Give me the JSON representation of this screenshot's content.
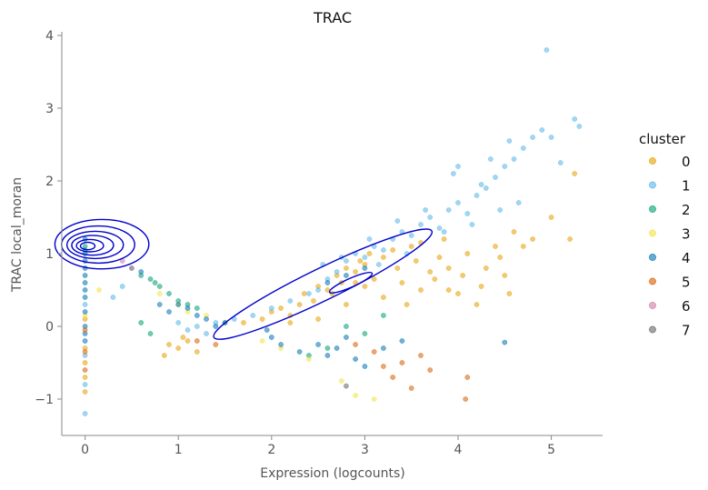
{
  "chart_data": {
    "type": "scatter",
    "title": "TRAC",
    "xlabel": "Expression (logcounts)",
    "ylabel": "TRAC local_moran",
    "xlim": [
      -0.25,
      5.55
    ],
    "ylim": [
      -1.5,
      4.05
    ],
    "xticks": [
      0,
      1,
      2,
      3,
      4,
      5
    ],
    "yticks": [
      -1,
      0,
      1,
      2,
      3,
      4
    ],
    "grid": false,
    "legend": {
      "title": "cluster",
      "placement": "right",
      "entries": [
        {
          "label": "0",
          "color": "#E69F00"
        },
        {
          "label": "1",
          "color": "#56B4E9"
        },
        {
          "label": "2",
          "color": "#009E73"
        },
        {
          "label": "3",
          "color": "#F0E442"
        },
        {
          "label": "4",
          "color": "#0072B2"
        },
        {
          "label": "5",
          "color": "#D55E00"
        },
        {
          "label": "6",
          "color": "#CC79A7"
        },
        {
          "label": "7",
          "color": "#666666"
        }
      ]
    },
    "series": [
      {
        "name": "0",
        "color": "#E69F00",
        "points": [
          [
            0,
            -0.9
          ],
          [
            0,
            -0.7
          ],
          [
            0,
            -0.5
          ],
          [
            0,
            -0.3
          ],
          [
            0,
            0.1
          ],
          [
            0.9,
            -0.25
          ],
          [
            1.0,
            -0.3
          ],
          [
            1.1,
            -0.2
          ],
          [
            1.2,
            -0.35
          ],
          [
            0.85,
            -0.4
          ],
          [
            1.05,
            -0.15
          ],
          [
            1.7,
            0.05
          ],
          [
            1.9,
            0.1
          ],
          [
            2.0,
            0.2
          ],
          [
            2.1,
            0.25
          ],
          [
            2.2,
            0.15
          ],
          [
            2.3,
            0.3
          ],
          [
            2.35,
            0.45
          ],
          [
            2.45,
            0.35
          ],
          [
            2.5,
            0.55
          ],
          [
            2.6,
            0.5
          ],
          [
            2.7,
            0.7
          ],
          [
            2.75,
            0.6
          ],
          [
            2.8,
            0.8
          ],
          [
            2.9,
            0.75
          ],
          [
            2.95,
            0.9
          ],
          [
            3.0,
            0.85
          ],
          [
            3.05,
            1.0
          ],
          [
            3.1,
            0.65
          ],
          [
            3.2,
            0.95
          ],
          [
            3.3,
            1.05
          ],
          [
            3.35,
            0.8
          ],
          [
            3.4,
            0.6
          ],
          [
            3.5,
            1.1
          ],
          [
            3.55,
            0.9
          ],
          [
            3.6,
            1.15
          ],
          [
            3.7,
            0.75
          ],
          [
            3.8,
            0.95
          ],
          [
            3.85,
            1.2
          ],
          [
            3.9,
            0.5
          ],
          [
            4.0,
            0.45
          ],
          [
            4.1,
            1.0
          ],
          [
            4.2,
            0.3
          ],
          [
            4.3,
            0.8
          ],
          [
            4.4,
            1.1
          ],
          [
            4.5,
            0.7
          ],
          [
            4.6,
            1.3
          ],
          [
            4.7,
            1.1
          ],
          [
            4.8,
            1.2
          ],
          [
            5.0,
            1.5
          ],
          [
            5.2,
            1.2
          ],
          [
            5.25,
            2.1
          ],
          [
            2.2,
            0.05
          ],
          [
            2.5,
            0.1
          ],
          [
            2.8,
            0.3
          ],
          [
            3.0,
            0.55
          ],
          [
            3.2,
            0.4
          ],
          [
            3.45,
            0.3
          ],
          [
            3.6,
            0.5
          ],
          [
            3.75,
            0.65
          ],
          [
            3.9,
            0.8
          ],
          [
            4.05,
            0.7
          ],
          [
            4.25,
            0.55
          ],
          [
            4.45,
            0.95
          ],
          [
            4.55,
            0.45
          ],
          [
            2.65,
            0.45
          ],
          [
            2.9,
            0.6
          ]
        ]
      },
      {
        "name": "1",
        "color": "#56B4E9",
        "points": [
          [
            0,
            -1.2
          ],
          [
            0,
            -0.8
          ],
          [
            0,
            -0.4
          ],
          [
            0,
            0.3
          ],
          [
            0.3,
            0.4
          ],
          [
            0.4,
            0.55
          ],
          [
            1.0,
            0.05
          ],
          [
            1.1,
            -0.05
          ],
          [
            1.2,
            0.0
          ],
          [
            1.3,
            -0.1
          ],
          [
            1.4,
            0.05
          ],
          [
            1.5,
            0.05
          ],
          [
            1.6,
            0.1
          ],
          [
            1.8,
            0.15
          ],
          [
            2.0,
            0.25
          ],
          [
            2.2,
            0.35
          ],
          [
            2.4,
            0.45
          ],
          [
            2.5,
            0.5
          ],
          [
            2.6,
            0.65
          ],
          [
            2.7,
            0.75
          ],
          [
            2.8,
            0.9
          ],
          [
            2.9,
            1.0
          ],
          [
            3.0,
            0.95
          ],
          [
            3.1,
            1.1
          ],
          [
            3.2,
            1.05
          ],
          [
            3.3,
            1.2
          ],
          [
            3.4,
            1.3
          ],
          [
            3.5,
            1.25
          ],
          [
            3.6,
            1.4
          ],
          [
            3.7,
            1.5
          ],
          [
            3.8,
            1.35
          ],
          [
            3.9,
            1.6
          ],
          [
            4.0,
            1.7
          ],
          [
            4.1,
            1.55
          ],
          [
            4.2,
            1.8
          ],
          [
            4.3,
            1.9
          ],
          [
            4.4,
            2.05
          ],
          [
            4.5,
            2.2
          ],
          [
            4.6,
            2.3
          ],
          [
            4.7,
            2.45
          ],
          [
            4.8,
            2.6
          ],
          [
            4.9,
            2.7
          ],
          [
            5.0,
            2.6
          ],
          [
            5.1,
            2.25
          ],
          [
            5.25,
            2.85
          ],
          [
            5.3,
            2.75
          ],
          [
            4.95,
            3.8
          ],
          [
            4.0,
            2.2
          ],
          [
            3.95,
            2.1
          ],
          [
            4.35,
            2.3
          ],
          [
            4.55,
            2.55
          ],
          [
            3.85,
            1.3
          ],
          [
            4.15,
            1.4
          ],
          [
            4.45,
            1.6
          ],
          [
            4.65,
            1.7
          ],
          [
            2.55,
            0.85
          ],
          [
            2.75,
            0.95
          ],
          [
            3.05,
            1.2
          ],
          [
            3.35,
            1.45
          ],
          [
            3.65,
            1.6
          ],
          [
            4.25,
            1.95
          ],
          [
            3.15,
            0.85
          ],
          [
            3.45,
            1.0
          ]
        ]
      },
      {
        "name": "2",
        "color": "#009E73",
        "points": [
          [
            0,
            1.1
          ],
          [
            0,
            1.05
          ],
          [
            0.5,
            0.8
          ],
          [
            0.6,
            0.7
          ],
          [
            0.7,
            0.65
          ],
          [
            0.8,
            0.55
          ],
          [
            0.9,
            0.45
          ],
          [
            1.0,
            0.35
          ],
          [
            0.6,
            0.05
          ],
          [
            0.7,
            -0.1
          ],
          [
            1.1,
            0.3
          ],
          [
            1.2,
            0.25
          ],
          [
            2.6,
            -0.3
          ],
          [
            2.8,
            0.0
          ],
          [
            3.0,
            -0.1
          ],
          [
            3.2,
            0.15
          ],
          [
            2.4,
            -0.4
          ],
          [
            0.75,
            0.6
          ]
        ]
      },
      {
        "name": "3",
        "color": "#F0E442",
        "points": [
          [
            0,
            0.15
          ],
          [
            0.15,
            0.5
          ],
          [
            0.8,
            0.45
          ],
          [
            1.0,
            0.3
          ],
          [
            1.1,
            0.2
          ],
          [
            1.3,
            0.15
          ],
          [
            1.5,
            0.05
          ],
          [
            1.9,
            -0.2
          ],
          [
            2.1,
            -0.3
          ],
          [
            2.4,
            -0.45
          ],
          [
            2.75,
            -0.75
          ],
          [
            3.1,
            -1.0
          ],
          [
            2.9,
            -0.95
          ]
        ]
      },
      {
        "name": "4",
        "color": "#0072B2",
        "points": [
          [
            0,
            1.2
          ],
          [
            0,
            1.0
          ],
          [
            0,
            0.9
          ],
          [
            0,
            0.8
          ],
          [
            0,
            0.7
          ],
          [
            0,
            0.6
          ],
          [
            0,
            0.5
          ],
          [
            0,
            0.4
          ],
          [
            0,
            0.2
          ],
          [
            0,
            0.0
          ],
          [
            0,
            -0.1
          ],
          [
            0,
            -0.2
          ],
          [
            0.6,
            0.75
          ],
          [
            0.8,
            0.3
          ],
          [
            0.9,
            0.2
          ],
          [
            1.0,
            0.3
          ],
          [
            1.1,
            0.25
          ],
          [
            1.2,
            0.15
          ],
          [
            1.3,
            0.1
          ],
          [
            1.4,
            0.0
          ],
          [
            1.5,
            0.05
          ],
          [
            1.95,
            -0.05
          ],
          [
            2.0,
            -0.15
          ],
          [
            2.1,
            -0.25
          ],
          [
            2.3,
            -0.35
          ],
          [
            2.5,
            -0.25
          ],
          [
            2.6,
            -0.4
          ],
          [
            2.7,
            -0.3
          ],
          [
            2.8,
            -0.15
          ],
          [
            2.9,
            -0.45
          ],
          [
            3.0,
            -0.55
          ],
          [
            3.2,
            -0.3
          ],
          [
            3.4,
            -0.2
          ],
          [
            4.5,
            -0.22
          ],
          [
            2.6,
            0.6
          ],
          [
            2.8,
            0.7
          ],
          [
            3.0,
            0.8
          ]
        ]
      },
      {
        "name": "5",
        "color": "#D55E00",
        "points": [
          [
            0,
            -0.6
          ],
          [
            0,
            -0.35
          ],
          [
            0,
            -0.05
          ],
          [
            2.9,
            -0.25
          ],
          [
            3.1,
            -0.35
          ],
          [
            3.2,
            -0.55
          ],
          [
            3.3,
            -0.7
          ],
          [
            3.4,
            -0.5
          ],
          [
            3.5,
            -0.85
          ],
          [
            3.6,
            -0.4
          ],
          [
            3.7,
            -0.6
          ],
          [
            4.1,
            -0.7
          ],
          [
            4.08,
            -1.0
          ],
          [
            1.2,
            -0.2
          ],
          [
            1.4,
            -0.25
          ]
        ]
      },
      {
        "name": "6",
        "color": "#CC79A7",
        "points": [
          [
            0.4,
            0.9
          ],
          [
            0.5,
            0.8
          ]
        ]
      },
      {
        "name": "7",
        "color": "#666666",
        "points": [
          [
            2.8,
            -0.82
          ]
        ]
      }
    ]
  }
}
